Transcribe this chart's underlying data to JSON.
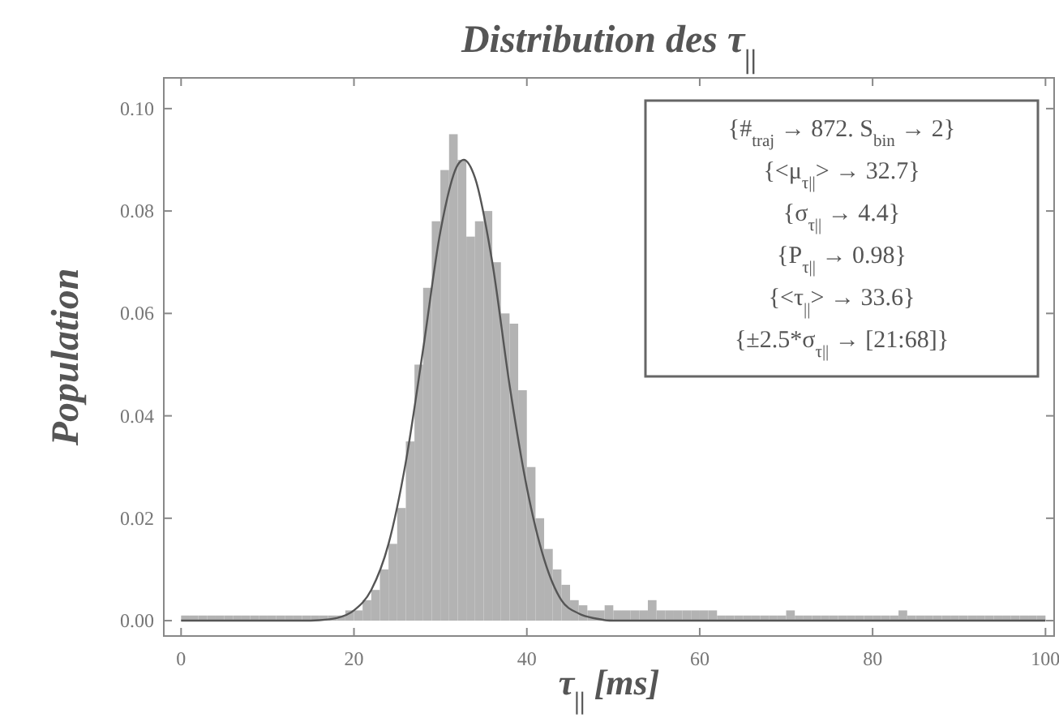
{
  "chart_data": {
    "type": "histogram",
    "title": "Distribution des τ$_{||}$",
    "xlabel": "τ$_{||}$ [ms]",
    "ylabel": "Population",
    "bins": [
      0,
      1,
      2,
      3,
      4,
      5,
      6,
      7,
      8,
      9,
      10,
      11,
      12,
      13,
      14,
      15,
      16,
      17,
      18,
      19,
      20,
      21,
      22,
      23,
      24,
      25,
      26,
      27,
      28,
      29,
      30,
      31,
      32,
      33,
      34,
      35,
      36,
      37,
      38,
      39,
      40,
      41,
      42,
      43,
      44,
      45,
      46,
      47,
      48,
      49,
      50,
      51,
      52,
      53,
      54,
      55,
      56,
      57,
      58,
      59,
      60,
      61,
      62,
      63,
      64,
      65,
      66,
      67,
      68,
      69,
      70,
      71,
      72,
      73,
      74,
      75,
      76,
      77,
      78,
      79,
      80,
      81,
      82,
      83,
      84,
      85,
      86,
      87,
      88,
      89,
      90,
      91,
      92,
      93,
      94,
      95,
      96,
      97,
      98,
      99,
      100
    ],
    "values": [
      0.001,
      0.001,
      0.001,
      0.001,
      0.001,
      0.001,
      0.001,
      0.001,
      0.001,
      0.001,
      0.001,
      0.001,
      0.001,
      0.001,
      0.001,
      0.001,
      0.001,
      0.001,
      0.001,
      0.002,
      0.002,
      0.004,
      0.006,
      0.01,
      0.015,
      0.022,
      0.035,
      0.05,
      0.065,
      0.078,
      0.088,
      0.095,
      0.09,
      0.075,
      0.078,
      0.08,
      0.07,
      0.06,
      0.058,
      0.045,
      0.03,
      0.02,
      0.014,
      0.01,
      0.007,
      0.004,
      0.003,
      0.002,
      0.002,
      0.003,
      0.002,
      0.002,
      0.002,
      0.002,
      0.004,
      0.002,
      0.002,
      0.002,
      0.002,
      0.002,
      0.002,
      0.002,
      0.001,
      0.001,
      0.001,
      0.001,
      0.001,
      0.001,
      0.001,
      0.001,
      0.002,
      0.001,
      0.001,
      0.001,
      0.001,
      0.001,
      0.001,
      0.001,
      0.001,
      0.001,
      0.001,
      0.001,
      0.001,
      0.002,
      0.001,
      0.001,
      0.001,
      0.001,
      0.001,
      0.001,
      0.001,
      0.001,
      0.001,
      0.001,
      0.001,
      0.001,
      0.001,
      0.001,
      0.001,
      0.001
    ],
    "color": "#b3b3b3",
    "series": [
      {
        "type": "line",
        "color": "#555555",
        "x": [
          0,
          14,
          16,
          18,
          20,
          22,
          24,
          26,
          28,
          30,
          32,
          32.7,
          34,
          36,
          38,
          40,
          42,
          44,
          46,
          48,
          50,
          100
        ],
        "values": [
          0,
          0,
          0.0001,
          0.0005,
          0.002,
          0.006,
          0.015,
          0.031,
          0.053,
          0.076,
          0.089,
          0.09,
          0.0865,
          0.07,
          0.046,
          0.026,
          0.012,
          0.004,
          0.0014,
          0.0004,
          0,
          0
        ]
      }
    ],
    "xlim": [
      -2,
      101
    ],
    "xticks": [
      0,
      20,
      40,
      60,
      80,
      100
    ],
    "ylim": [
      -0.003,
      0.106
    ],
    "yticks": [
      {
        "value": 0,
        "label": "0.00"
      },
      {
        "value": 0.02,
        "label": "0.02"
      },
      {
        "value": 0.04,
        "label": "0.04"
      },
      {
        "value": 0.06,
        "label": "0.06"
      },
      {
        "value": 0.08,
        "label": "0.08"
      },
      {
        "value": 0.1,
        "label": "0.10"
      }
    ],
    "annotations": [
      "{#$_{traj}$ → 872. S$_{bin}$ → 2}",
      "{<μ$_{τ||}$> → 32.7}",
      "{σ$_{τ||}$ → 4.4}",
      "{P$_{τ||}$ → 0.98}",
      "{<τ$_{||}$> → 33.6}",
      "{±2.5*σ$_{τ||}$ → [21:68]}"
    ]
  }
}
